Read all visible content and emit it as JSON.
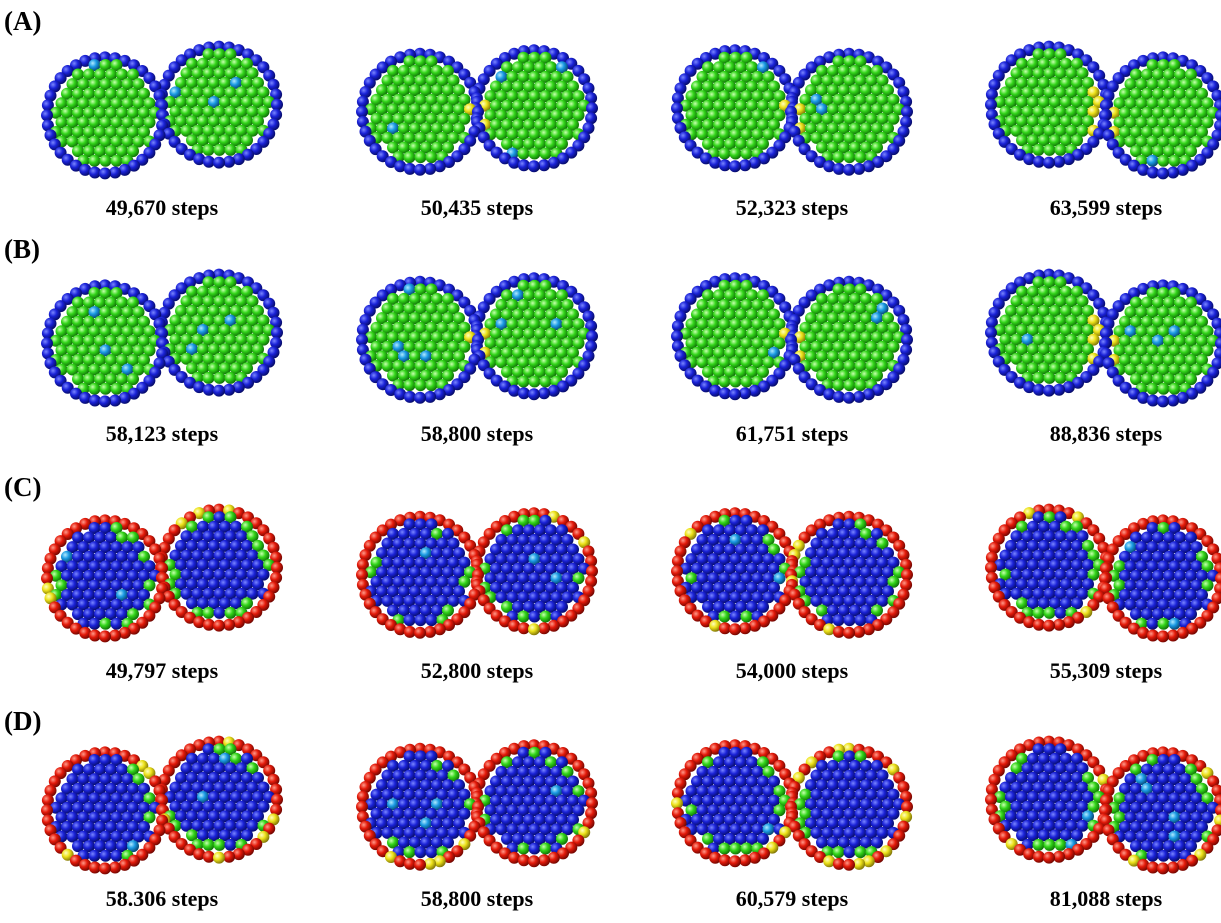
{
  "panels": [
    {
      "label": "(A)",
      "frames": [
        {
          "caption": "49,670 steps"
        },
        {
          "caption": "50,435 steps"
        },
        {
          "caption": "52,323 steps"
        },
        {
          "caption": "63,599 steps"
        }
      ]
    },
    {
      "label": "(B)",
      "frames": [
        {
          "caption": "58,123 steps"
        },
        {
          "caption": "58,800 steps"
        },
        {
          "caption": "61,751 steps"
        },
        {
          "caption": "88,836 steps"
        }
      ]
    },
    {
      "label": "(C)",
      "frames": [
        {
          "caption": "49,797 steps"
        },
        {
          "caption": "52,800 steps"
        },
        {
          "caption": "54,000 steps"
        },
        {
          "caption": "55,309 steps"
        }
      ]
    },
    {
      "label": "(D)",
      "frames": [
        {
          "caption": "58.306 steps"
        },
        {
          "caption": "58,800 steps"
        },
        {
          "caption": "60,579 steps"
        },
        {
          "caption": "81,088 steps"
        }
      ]
    }
  ]
}
